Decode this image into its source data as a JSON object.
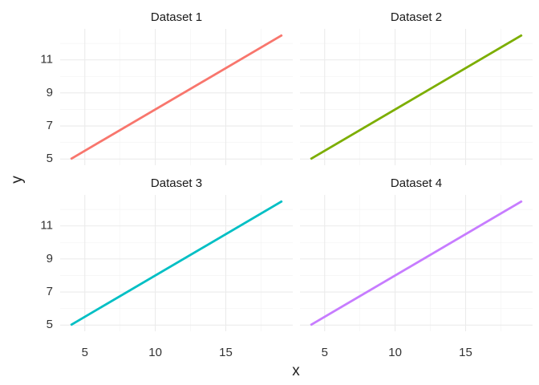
{
  "chart_data": {
    "type": "line",
    "x_label": "x",
    "y_label": "y",
    "xlim": [
      3.25,
      19.75
    ],
    "ylim": [
      4.625,
      12.875
    ],
    "xticks": [
      5,
      10,
      15
    ],
    "yticks": [
      5,
      7,
      9,
      11
    ],
    "minor_xticks": [
      7.5,
      12.5,
      17.5
    ],
    "minor_yticks": [
      6,
      8,
      10,
      12
    ],
    "grid": true,
    "facets": [
      {
        "title": "Dataset 1",
        "color": "#f8766d",
        "x": [
          4,
          19
        ],
        "values": [
          5,
          12.5
        ]
      },
      {
        "title": "Dataset 2",
        "color": "#7cae00",
        "x": [
          4,
          19
        ],
        "values": [
          5,
          12.5
        ]
      },
      {
        "title": "Dataset 3",
        "color": "#00bfc4",
        "x": [
          4,
          19
        ],
        "values": [
          5,
          12.5
        ]
      },
      {
        "title": "Dataset 4",
        "color": "#c77cff",
        "x": [
          4,
          19
        ],
        "values": [
          5,
          12.5
        ]
      }
    ]
  }
}
